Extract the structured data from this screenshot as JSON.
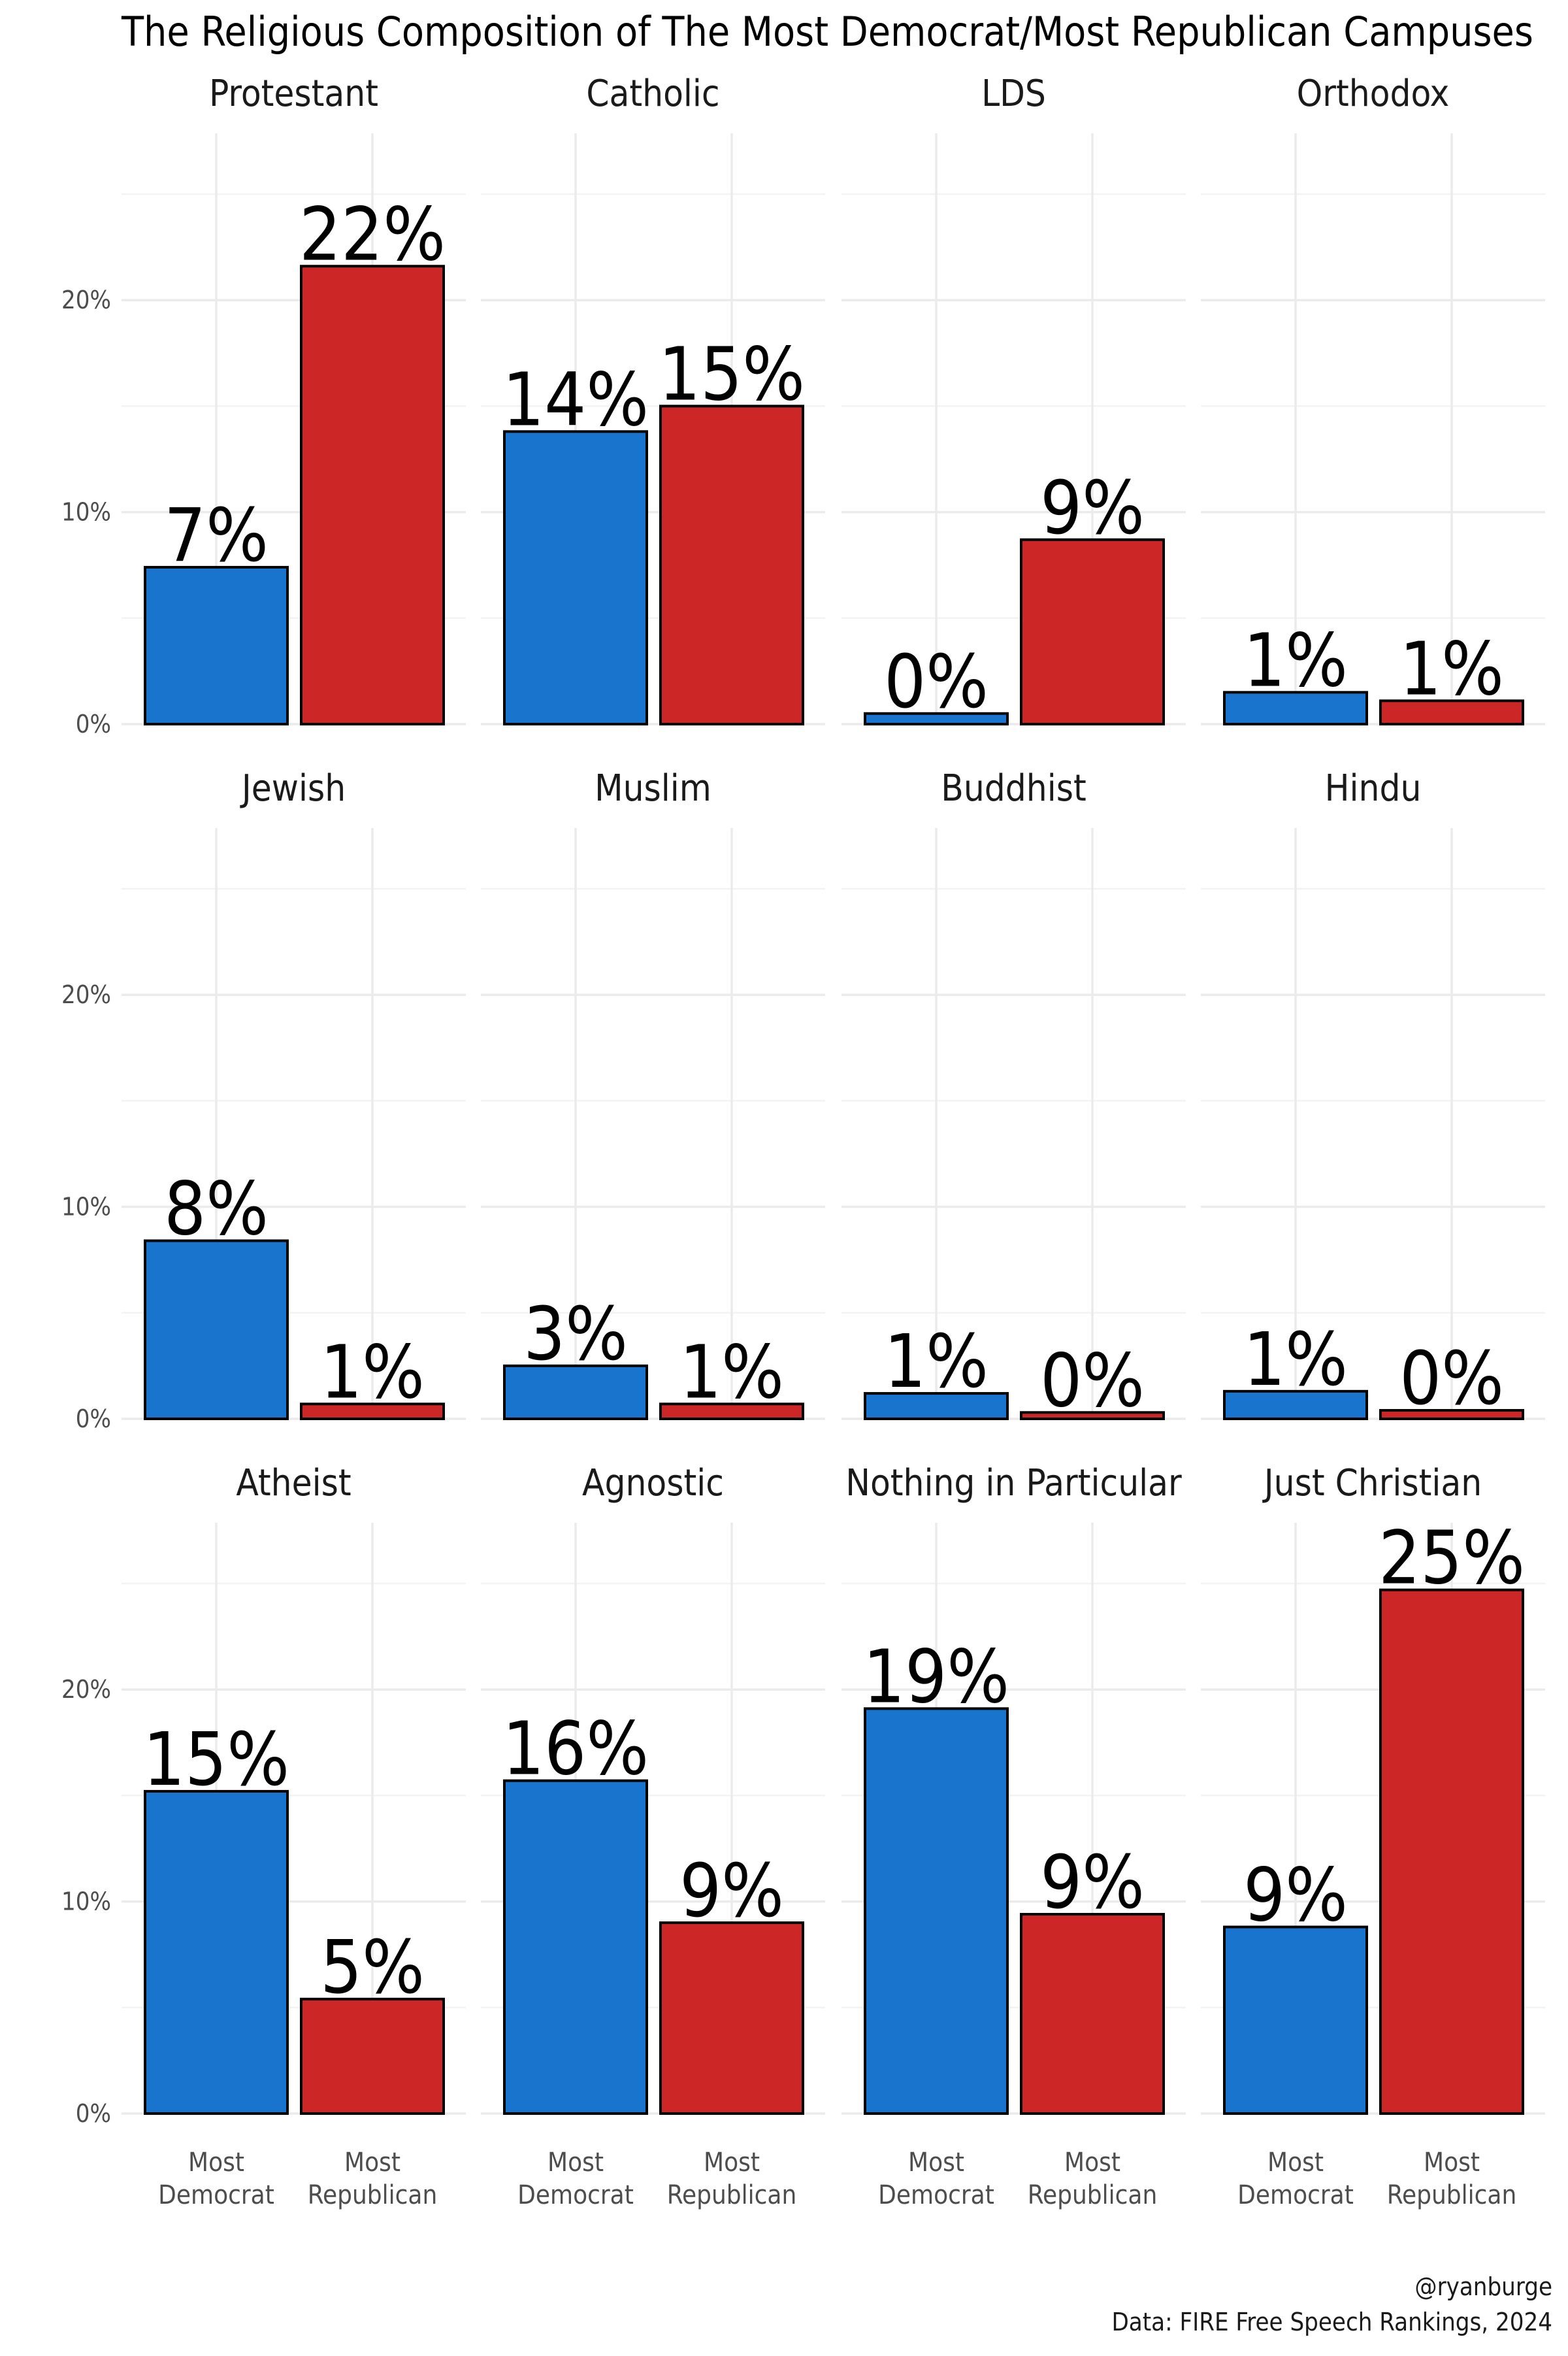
{
  "chart_data": {
    "type": "bar",
    "title": "The Religious Composition of The Most Democrat/Most Republican Campuses",
    "categories": [
      "Most\nDemocrat",
      "Most\nRepublican"
    ],
    "ylim": [
      0,
      0.27
    ],
    "yticks": [
      0,
      0.1,
      0.2
    ],
    "ytick_labels": [
      "0%",
      "10%",
      "20%"
    ],
    "grid": true,
    "legend": "none",
    "colors": {
      "Most Democrat": "#1874CD",
      "Most Republican": "#CD2626",
      "outline": "#000000"
    },
    "facets": [
      {
        "title": "Protestant",
        "values": [
          0.074,
          0.216
        ],
        "labels": [
          "7%",
          "22%"
        ]
      },
      {
        "title": "Catholic",
        "values": [
          0.138,
          0.15
        ],
        "labels": [
          "14%",
          "15%"
        ]
      },
      {
        "title": "LDS",
        "values": [
          0.005,
          0.087
        ],
        "labels": [
          "0%",
          "9%"
        ]
      },
      {
        "title": "Orthodox",
        "values": [
          0.015,
          0.011
        ],
        "labels": [
          "1%",
          "1%"
        ]
      },
      {
        "title": "Jewish",
        "values": [
          0.084,
          0.007
        ],
        "labels": [
          "8%",
          "1%"
        ]
      },
      {
        "title": "Muslim",
        "values": [
          0.025,
          0.007
        ],
        "labels": [
          "3%",
          "1%"
        ]
      },
      {
        "title": "Buddhist",
        "values": [
          0.012,
          0.003
        ],
        "labels": [
          "1%",
          "0%"
        ]
      },
      {
        "title": "Hindu",
        "values": [
          0.013,
          0.004
        ],
        "labels": [
          "1%",
          "0%"
        ]
      },
      {
        "title": "Atheist",
        "values": [
          0.152,
          0.054
        ],
        "labels": [
          "15%",
          "5%"
        ]
      },
      {
        "title": "Agnostic",
        "values": [
          0.157,
          0.09
        ],
        "labels": [
          "16%",
          "9%"
        ]
      },
      {
        "title": "Nothing in Particular",
        "values": [
          0.191,
          0.094
        ],
        "labels": [
          "19%",
          "9%"
        ]
      },
      {
        "title": "Just Christian",
        "values": [
          0.088,
          0.247
        ],
        "labels": [
          "9%",
          "25%"
        ]
      }
    ]
  },
  "caption": {
    "line1": "@ryanburge",
    "line2": "Data: FIRE Free Speech Rankings, 2024"
  }
}
